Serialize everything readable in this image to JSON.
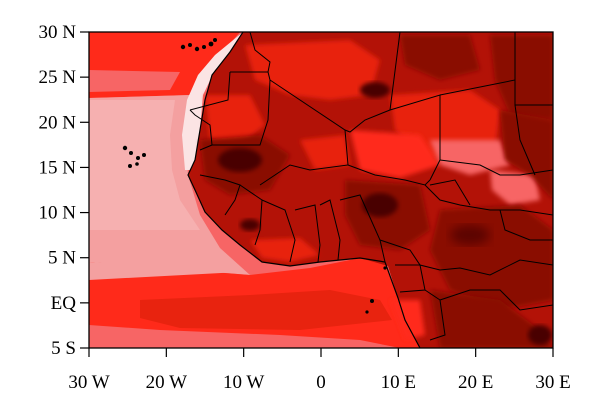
{
  "map": {
    "type": "filled-contour",
    "extent": {
      "lon": [
        -30,
        30
      ],
      "lat": [
        -5,
        30
      ]
    },
    "x_ticks": [
      {
        "value": -30,
        "label": "30 W"
      },
      {
        "value": -20,
        "label": "20 W"
      },
      {
        "value": -10,
        "label": "10 W"
      },
      {
        "value": 0,
        "label": "0"
      },
      {
        "value": 10,
        "label": "10 E"
      },
      {
        "value": 20,
        "label": "20 E"
      },
      {
        "value": 30,
        "label": "30 E"
      }
    ],
    "y_ticks": [
      {
        "value": 30,
        "label": "30 N"
      },
      {
        "value": 25,
        "label": "25 N"
      },
      {
        "value": 20,
        "label": "20 N"
      },
      {
        "value": 15,
        "label": "15 N"
      },
      {
        "value": 10,
        "label": "10 N"
      },
      {
        "value": 5,
        "label": "5 N"
      },
      {
        "value": 0,
        "label": "EQ"
      },
      {
        "value": -5,
        "label": "5 S"
      }
    ],
    "colors": {
      "background": "#ffffff",
      "ocean_pale": "#f4a0a0",
      "ocean_light": "#f76565",
      "bright_red": "#ff2a1a",
      "red": "#e8230f",
      "dark_red": "#b31207",
      "darker_red": "#8a0b05",
      "darkest": "#4a0404",
      "near_white": "#fbe4e4",
      "borders": "#000000"
    }
  }
}
